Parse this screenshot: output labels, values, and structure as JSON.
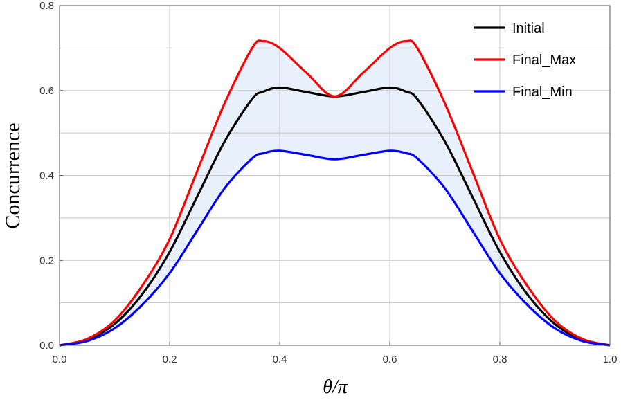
{
  "chart_data": {
    "type": "line",
    "xlabel": "θ/π",
    "ylabel": "Concurrence",
    "xlim": [
      0.0,
      1.0
    ],
    "ylim": [
      0.0,
      0.8
    ],
    "x_ticks": [
      "0.0",
      "0.2",
      "0.4",
      "0.6",
      "0.8",
      "1.0"
    ],
    "y_ticks": [
      "0.0",
      "0.2",
      "0.4",
      "0.6",
      "0.8"
    ],
    "grid": true,
    "legend_position": "top-right",
    "shaded_band": {
      "between": [
        "Final_Max",
        "Final_Min"
      ],
      "color": "#e8f1fb"
    },
    "x": [
      0.0,
      0.05,
      0.1,
      0.15,
      0.2,
      0.25,
      0.3,
      0.35,
      0.37,
      0.4,
      0.45,
      0.5,
      0.55,
      0.6,
      0.63,
      0.65,
      0.7,
      0.75,
      0.8,
      0.85,
      0.9,
      0.95,
      1.0
    ],
    "series": [
      {
        "name": "Initial",
        "color": "#000000",
        "values": [
          0.0,
          0.013,
          0.05,
          0.12,
          0.22,
          0.35,
          0.48,
          0.58,
          0.597,
          0.607,
          0.596,
          0.586,
          0.596,
          0.607,
          0.597,
          0.58,
          0.48,
          0.35,
          0.22,
          0.12,
          0.05,
          0.013,
          0.0
        ]
      },
      {
        "name": "Final_Max",
        "color": "#ff0000",
        "values": [
          0.0,
          0.015,
          0.058,
          0.14,
          0.25,
          0.41,
          0.57,
          0.7,
          0.716,
          0.7,
          0.64,
          0.586,
          0.64,
          0.7,
          0.716,
          0.7,
          0.57,
          0.41,
          0.25,
          0.14,
          0.058,
          0.015,
          0.0
        ]
      },
      {
        "name": "Final_Min",
        "color": "#0000ff",
        "values": [
          0.0,
          0.01,
          0.04,
          0.095,
          0.17,
          0.27,
          0.37,
          0.44,
          0.452,
          0.458,
          0.448,
          0.438,
          0.448,
          0.458,
          0.452,
          0.44,
          0.37,
          0.27,
          0.17,
          0.095,
          0.04,
          0.01,
          0.0
        ]
      }
    ]
  }
}
